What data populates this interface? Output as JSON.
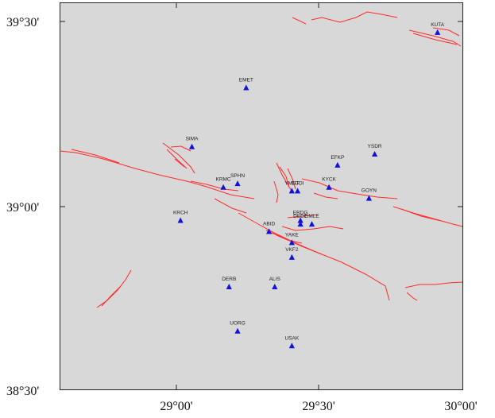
{
  "map": {
    "background_color": "#d8d8d8",
    "fault_color": "#ff2a2a",
    "station_color": "#1010e0",
    "lat_labels": [
      "39°30'",
      "39°00'",
      "38°30'"
    ],
    "lon_labels": [
      "29°00'",
      "29°30'",
      "30°00'"
    ],
    "stations": [
      {
        "name": "KUTA",
        "lon": 29.91,
        "lat": 39.47
      },
      {
        "name": "EMET",
        "lon": 29.24,
        "lat": 39.32
      },
      {
        "name": "SIMA",
        "lon": 29.05,
        "lat": 39.16
      },
      {
        "name": "YSDR",
        "lon": 29.69,
        "lat": 39.14
      },
      {
        "name": "EFKP",
        "lon": 29.56,
        "lat": 39.11
      },
      {
        "name": "SPHN",
        "lon": 29.21,
        "lat": 39.06
      },
      {
        "name": "EGDI",
        "lon": 29.42,
        "lat": 39.04
      },
      {
        "name": "KRMC",
        "lon": 29.16,
        "lat": 39.05
      },
      {
        "name": "YMST",
        "lon": 29.4,
        "lat": 39.04
      },
      {
        "name": "KYCK",
        "lon": 29.53,
        "lat": 39.05
      },
      {
        "name": "GOYN",
        "lon": 29.67,
        "lat": 39.02
      },
      {
        "name": "KRCH",
        "lon": 29.01,
        "lat": 38.96
      },
      {
        "name": "ERDG",
        "lon": 29.43,
        "lat": 38.96
      },
      {
        "name": "GMLE",
        "lon": 29.47,
        "lat": 38.95
      },
      {
        "name": "DEDE",
        "lon": 29.43,
        "lat": 38.95
      },
      {
        "name": "ABID",
        "lon": 29.32,
        "lat": 38.93
      },
      {
        "name": "YAKE",
        "lon": 29.4,
        "lat": 38.9
      },
      {
        "name": "VKF2",
        "lon": 29.4,
        "lat": 38.86
      },
      {
        "name": "DERB",
        "lon": 29.18,
        "lat": 38.78
      },
      {
        "name": "ALIS",
        "lon": 29.34,
        "lat": 38.78
      },
      {
        "name": "UORG",
        "lon": 29.21,
        "lat": 38.66
      },
      {
        "name": "USAK",
        "lon": 29.4,
        "lat": 38.62
      }
    ]
  }
}
